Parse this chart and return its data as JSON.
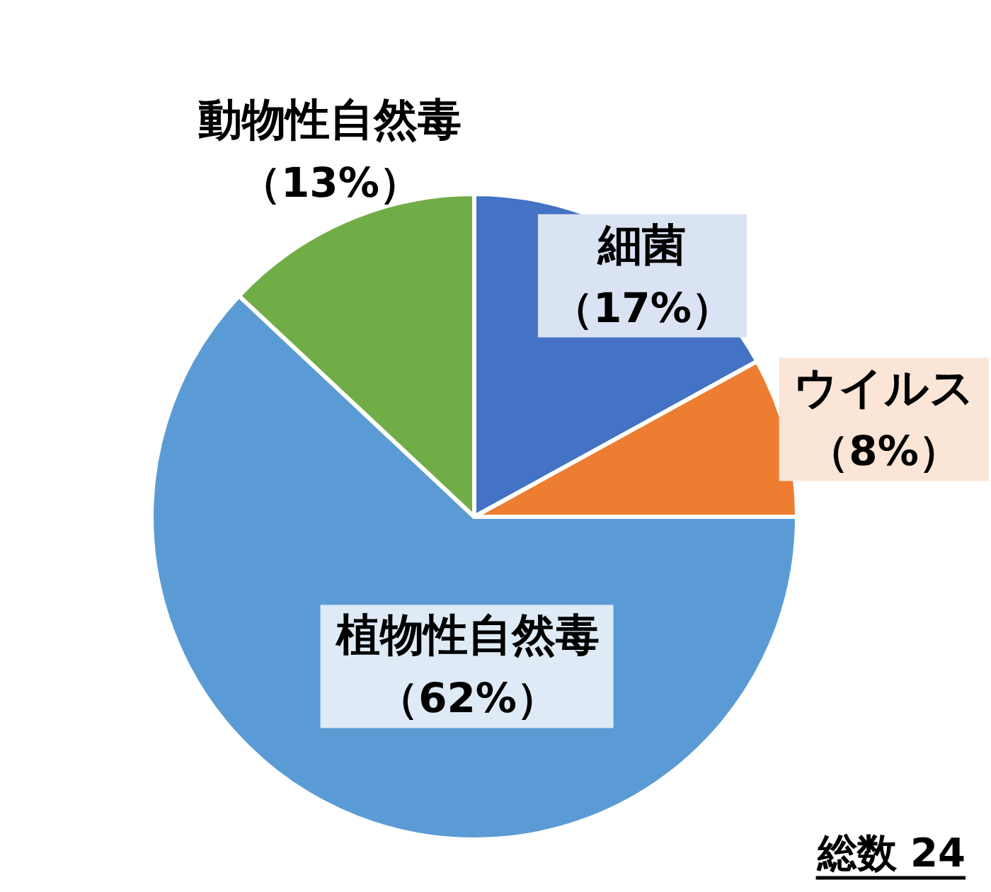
{
  "chart_data": {
    "type": "pie",
    "categories": [
      "細菌",
      "ウイルス",
      "植物性自然毒",
      "動物性自然毒"
    ],
    "values": [
      17,
      8,
      62,
      13
    ],
    "value_labels": [
      "（17%）",
      "（8%）",
      "（62%）",
      "（13%）"
    ],
    "colors": [
      "#4472c4",
      "#ed7d31",
      "#5b9bd5",
      "#70ad47"
    ],
    "annotations": [
      "総数 24"
    ]
  }
}
